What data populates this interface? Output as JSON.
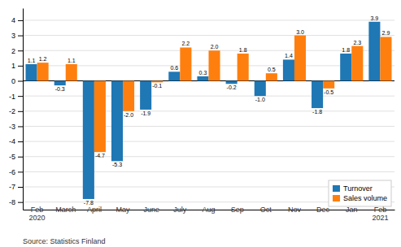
{
  "chart_data": {
    "type": "bar",
    "categories": [
      "Feb\n2020",
      "March",
      "April",
      "May",
      "June",
      "July",
      "Aug",
      "Sep",
      "Oct",
      "Nov",
      "Dec",
      "Jan",
      "Feb\n2021"
    ],
    "series": [
      {
        "name": "Turnover",
        "values": [
          1.1,
          -0.3,
          -7.8,
          -5.3,
          -1.9,
          0.6,
          0.3,
          -0.2,
          -1.0,
          1.4,
          -1.8,
          1.8,
          3.9
        ],
        "value_labels": [
          "1.1",
          "-0.3",
          "-7.8",
          "-5.3",
          "-1.9",
          "0.6",
          "0.3",
          "-0.2",
          "-1.0",
          "1.4",
          "-1.8",
          "1.8",
          "3.9"
        ]
      },
      {
        "name": "Sales volume",
        "values": [
          1.2,
          1.1,
          -4.7,
          -2.0,
          -0.1,
          2.2,
          2.0,
          1.8,
          0.5,
          3.0,
          -0.5,
          2.3,
          2.9
        ],
        "value_labels": [
          "1.2",
          "1.1",
          "-4.7",
          "-2.0",
          "-0.1",
          "2.2",
          "2.0",
          "1.8",
          "0.5",
          "3.0",
          "-0.5",
          "2.3",
          "2.9"
        ]
      }
    ],
    "ylim": [
      -8.5,
      4.8
    ],
    "yticks": [
      -8,
      -7,
      -6,
      -5,
      -4,
      -3,
      -2,
      -1,
      0,
      1,
      2,
      3,
      4
    ],
    "grid": true,
    "legend": "lower right",
    "data_labels": true,
    "annotations": [
      "Source: Statistics Finland"
    ]
  }
}
